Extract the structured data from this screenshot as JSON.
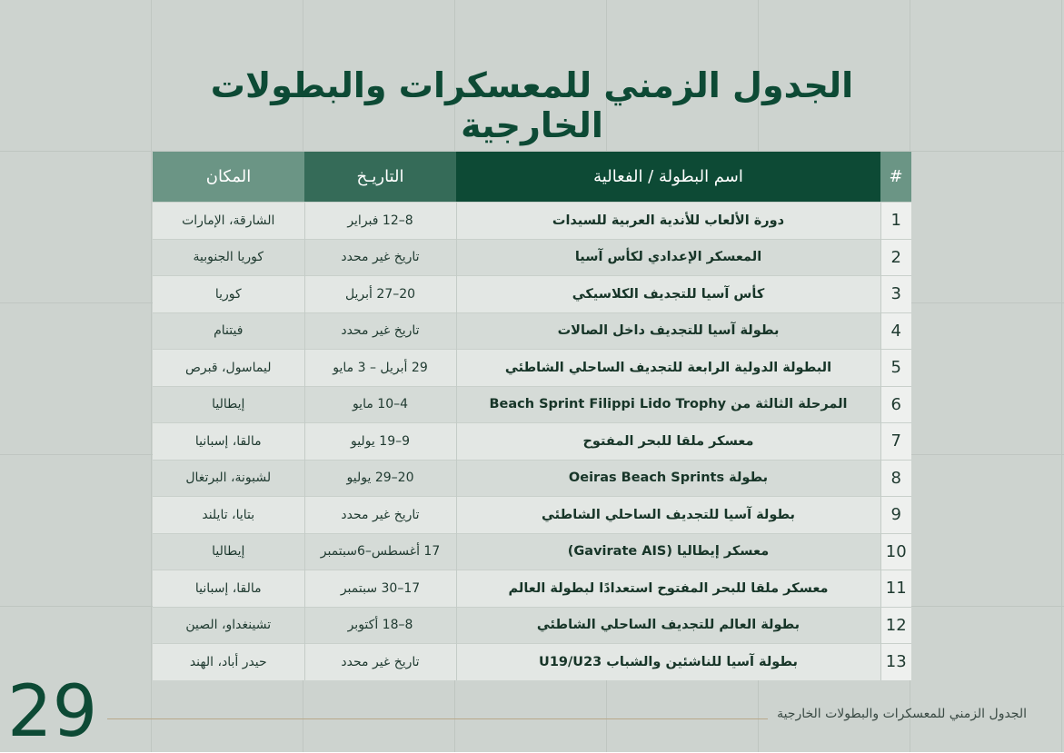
{
  "header": {
    "title": "الجدول الزمني للمعسكرات والبطولات الخارجية"
  },
  "table": {
    "columns": [
      "#",
      "اسم البطولة / الفعالية",
      "التاريـخ",
      "المكان"
    ],
    "rows": [
      [
        1,
        "دورة الألعاب للأندية العربية للسيدات",
        "8–12 فبراير",
        "الشارقة، الإمارات"
      ],
      [
        2,
        "المعسكر الإعدادي لكأس آسيا",
        "تاريخ غير محدد",
        "كوريا الجنوبية"
      ],
      [
        3,
        "كأس آسيا للتجديف الكلاسيكي",
        "20–27 أبريل",
        "كوريا"
      ],
      [
        4,
        "بطولة آسيا للتجديف داخل الصالات",
        "تاريخ غير محدد",
        "فيتنام"
      ],
      [
        5,
        "البطولة الدولية الرابعة للتجديف الساحلي الشاطئي",
        "29 أبريل – 3 مايو",
        "ليماسول، قبرص"
      ],
      [
        6,
        "المرحلة الثالثة من Beach Sprint Filippi Lido Trophy",
        "4–10 مايو",
        "إيطاليا"
      ],
      [
        7,
        "معسكر ملقا للبحر المفتوح",
        "9–19 يوليو",
        "مالقا، إسبانيا"
      ],
      [
        8,
        "بطولة Oeiras Beach Sprints",
        "20–29 يوليو",
        "لشبونة، البرتغال"
      ],
      [
        9,
        "بطولة آسيا للتجديف الساحلي الشاطئي",
        "تاريخ غير محدد",
        "بتايا، تايلند"
      ],
      [
        10,
        "معسكر إيطاليا (Gavirate AIS)",
        "17 أغسطس–6سبتمبر",
        "إيطاليا"
      ],
      [
        11,
        "معسكر ملقا للبحر المفتوح استعدادًا لبطولة العالم",
        "17–30 سبتمبر",
        "مالقا، إسبانيا"
      ],
      [
        12,
        "بطولة العالم للتجديف الساحلي الشاطئي",
        "8–18 أكتوبر",
        "تشينغداو، الصين"
      ],
      [
        13,
        "بطولة آسيا للناشئين والشباب U19/U23",
        "تاريخ غير محدد",
        "حيدر أباد، الهند"
      ]
    ]
  },
  "footer": {
    "page_number": 29,
    "text": "الجدول الزمني للمعسكرات والبطولات الخارجية"
  }
}
